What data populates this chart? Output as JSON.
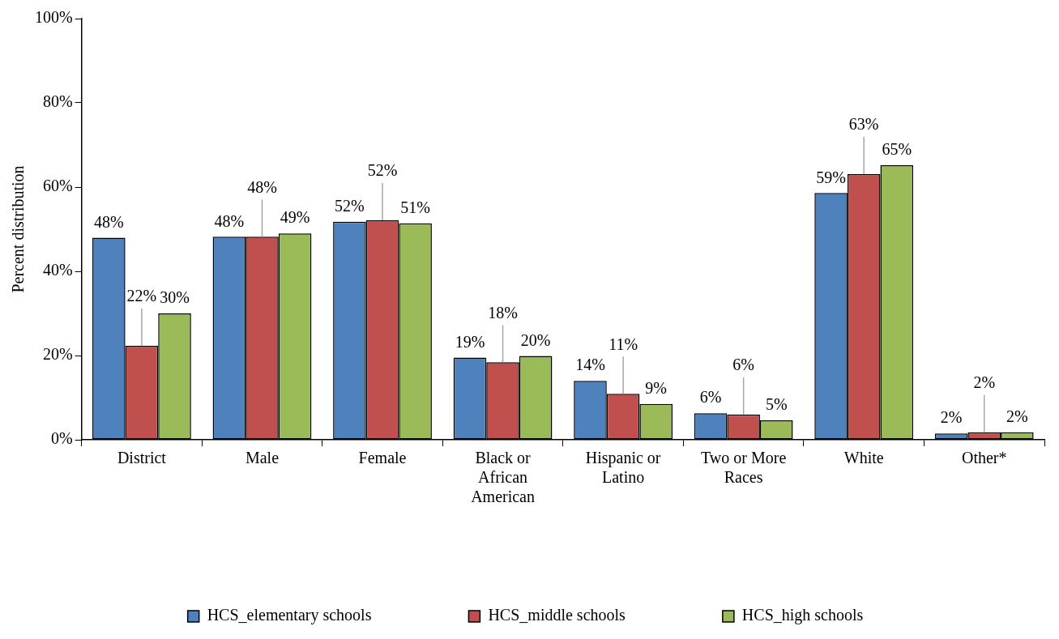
{
  "chart_data": {
    "type": "bar",
    "ylabel": "Percent distribution",
    "categories": [
      "District",
      "Male",
      "Female",
      "Black or African American",
      "Hispanic or Latino",
      "Two or More Races",
      "White",
      "Other*"
    ],
    "series": [
      {
        "name": "HCS_elementary schools",
        "color": "#4f81bd",
        "values": [
          48,
          48.2,
          51.8,
          19.5,
          14,
          6.3,
          58.6,
          1.5
        ],
        "value_labels": [
          "48%",
          "48%",
          "52%",
          "19%",
          "14%",
          "6%",
          "59%",
          "2%"
        ]
      },
      {
        "name": "HCS_middle schools",
        "color": "#c0504d",
        "values": [
          22.3,
          48.2,
          52.1,
          18.4,
          10.9,
          6,
          63.1,
          1.8
        ],
        "value_labels": [
          "22%",
          "48%",
          "52%",
          "18%",
          "11%",
          "6%",
          "63%",
          "2%"
        ]
      },
      {
        "name": "HCS_high schools",
        "color": "#9bbb59",
        "values": [
          30,
          49,
          51.4,
          19.9,
          8.5,
          4.6,
          65.2,
          1.8
        ],
        "value_labels": [
          "30%",
          "49%",
          "51%",
          "20%",
          "9%",
          "5%",
          "65%",
          "2%"
        ]
      }
    ],
    "ylim": [
      0,
      100
    ],
    "yticks": [
      {
        "value": 0,
        "label": "0%"
      },
      {
        "value": 20,
        "label": "20%"
      },
      {
        "value": 40,
        "label": "40%"
      },
      {
        "value": 60,
        "label": "60%"
      },
      {
        "value": 80,
        "label": "80%"
      },
      {
        "value": 100,
        "label": "100%"
      }
    ],
    "grid": false,
    "legend": "bottom"
  }
}
